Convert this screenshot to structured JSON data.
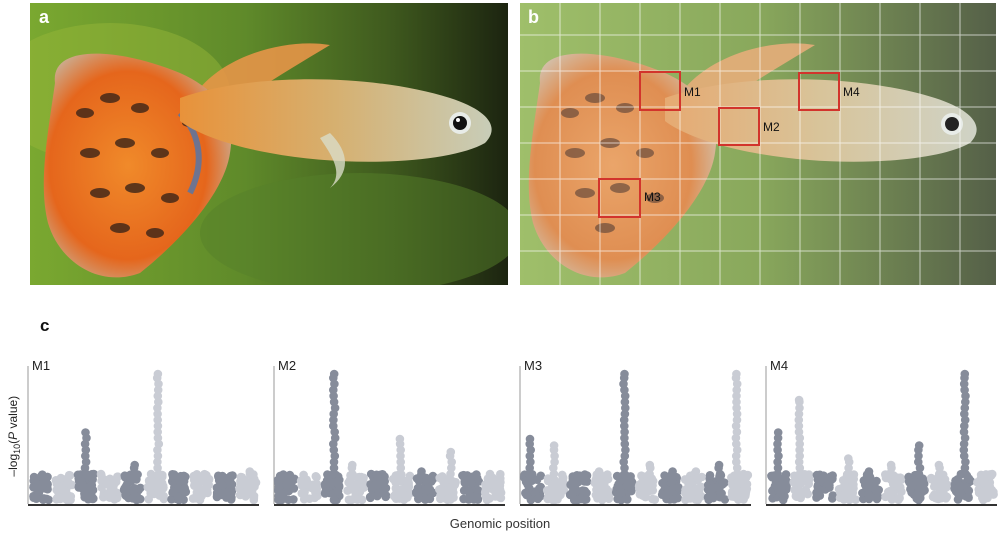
{
  "panels": {
    "a": {
      "label": "a"
    },
    "b": {
      "label": "b"
    },
    "c": {
      "label": "c"
    }
  },
  "modules": [
    {
      "label": "M1",
      "peaks": [
        0,
        0.2,
        0.55,
        0.15,
        0.3,
        1.0,
        0.2,
        0.2,
        0.2,
        0.25
      ]
    },
    {
      "label": "M2",
      "peaks": [
        0.2,
        0.15,
        1.0,
        0.3,
        0.15,
        0.5,
        0.25,
        0.4,
        0.2,
        0.15
      ]
    },
    {
      "label": "M3",
      "peaks": [
        0.5,
        0.45,
        0.2,
        0.25,
        1.0,
        0.3,
        0.25,
        0.25,
        0.3,
        1.0
      ]
    },
    {
      "label": "M4",
      "peaks": [
        0.55,
        0.8,
        0.2,
        0.35,
        0.25,
        0.3,
        0.45,
        0.3,
        1.0,
        0.2
      ]
    }
  ],
  "axes": {
    "ylabel_prefix": "–log",
    "ylabel_sub": "10",
    "ylabel_mid": "(",
    "ylabel_italic": "P",
    "ylabel_suffix": " value)",
    "xlabel": "Genomic position"
  },
  "colors": {
    "dark": "#868c9a",
    "light": "#c9ccd4",
    "box": "#d2342c"
  }
}
